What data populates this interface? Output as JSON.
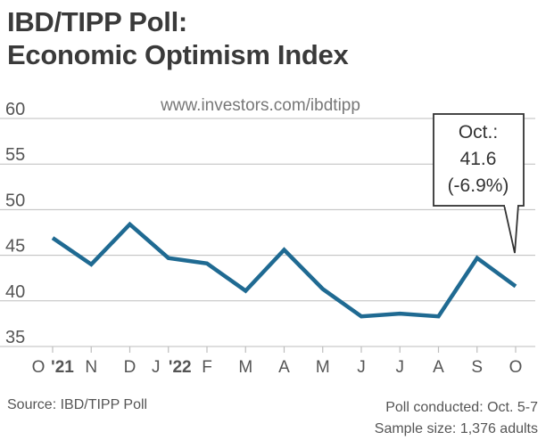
{
  "title": {
    "line1": "IBD/TIPP Poll:",
    "line2": "Economic Optimism Index"
  },
  "watermark": "www.investors.com/ibdtipp",
  "callout": {
    "month": "Oct.:",
    "value": "41.6",
    "change": "(-6.9%)"
  },
  "footer": {
    "source": "Source: IBD/TIPP Poll",
    "conducted": "Poll conducted: Oct. 5-7",
    "sample": "Sample size: 1,376 adults"
  },
  "colors": {
    "line": "#1f6a92",
    "grid": "#bdbdbd",
    "text": "#555555"
  },
  "chart_data": {
    "type": "line",
    "title": "IBD/TIPP Poll: Economic Optimism Index",
    "xlabel": "",
    "ylabel": "",
    "ylim": [
      35,
      60
    ],
    "yticks": [
      60,
      55,
      50,
      45,
      40,
      35
    ],
    "grid": true,
    "categories": [
      "O '21",
      "N",
      "D",
      "J '22",
      "F",
      "M",
      "A",
      "M",
      "J",
      "J",
      "A",
      "S",
      "O"
    ],
    "tick_labels": [
      "O",
      "'21",
      "N",
      "D",
      "J",
      "'22",
      "F",
      "M",
      "A",
      "M",
      "J",
      "J",
      "A",
      "S",
      "O"
    ],
    "series": [
      {
        "name": "Economic Optimism Index",
        "values": [
          46.9,
          44.0,
          48.4,
          44.7,
          44.1,
          41.1,
          45.6,
          41.3,
          38.3,
          38.6,
          38.3,
          44.7,
          41.6
        ]
      }
    ]
  }
}
